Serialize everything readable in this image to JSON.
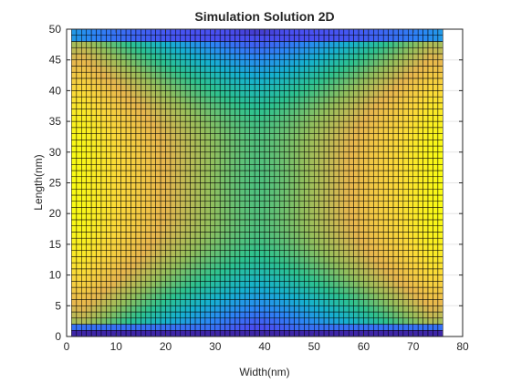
{
  "chart_data": {
    "type": "heatmap",
    "title": "Simulation Solution 2D",
    "xlabel": "Width(nm)",
    "ylabel": "Length(nm)",
    "xlim": [
      0,
      80
    ],
    "ylim": [
      0,
      50
    ],
    "xticks": [
      0,
      10,
      20,
      30,
      40,
      50,
      60,
      70,
      80
    ],
    "yticks": [
      0,
      5,
      10,
      15,
      20,
      25,
      30,
      35,
      40,
      45,
      50
    ],
    "grid": true,
    "x_range": [
      1,
      75
    ],
    "y_range": [
      1,
      50
    ],
    "grid_step": 1,
    "colormap": [
      "#3e26a8",
      "#4850f2",
      "#2b87f6",
      "#16b1cf",
      "#2dc28f",
      "#94bf5c",
      "#e7b64e",
      "#fbd83b",
      "#f9fb14"
    ],
    "field": "Solution values are read from color only (no colorbar shown): the bottom row (y=1) is the lowest (dark blue); a second low band runs along the top edge (y=50). Values are highest (yellow/orange) near the left and right edges at mid-height and lowest in an X-shaped valley with a green center around (38, 25)."
  }
}
